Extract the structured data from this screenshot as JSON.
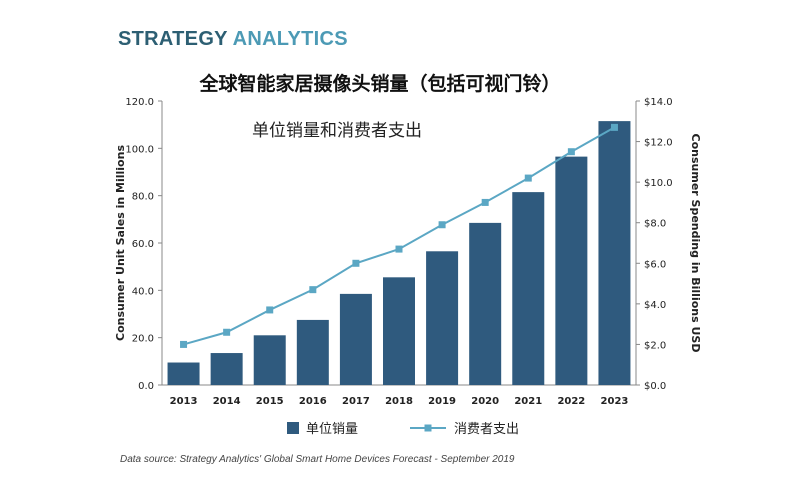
{
  "brand": {
    "part1": "STRATEGY",
    "part2": "ANALYTICS"
  },
  "source_note": "Data source: Strategy Analytics' Global Smart Home Devices Forecast - September 2019",
  "colors": {
    "bar": "#2f5a7e",
    "line": "#5ba7c4",
    "logo": "#2d5f73",
    "logo_accent": "#4c9ab5"
  },
  "chart_data": {
    "type": "bar",
    "title": "全球智能家居摄像头销量（包括可视门铃）",
    "subtitle": "单位销量和消费者支出",
    "categories": [
      "2013",
      "2014",
      "2015",
      "2016",
      "2017",
      "2018",
      "2019",
      "2020",
      "2021",
      "2022",
      "2023"
    ],
    "series": [
      {
        "name": "单位销量",
        "type": "bar",
        "axis": "left",
        "values": [
          9.5,
          13.5,
          21,
          27.5,
          38.5,
          45.5,
          56.5,
          68.5,
          81.5,
          96.5,
          111.5
        ]
      },
      {
        "name": "消费者支出",
        "type": "line",
        "axis": "right",
        "values": [
          2.0,
          2.6,
          3.7,
          4.7,
          6.0,
          6.7,
          7.9,
          9.0,
          10.2,
          11.5,
          12.7
        ]
      }
    ],
    "ylabel": "Consumer Unit Sales in Millions",
    "y2label": "Consumer Spending in Billions USD",
    "ylim": [
      0,
      120
    ],
    "y2lim": [
      0,
      14
    ],
    "yticks": [
      "0.0",
      "20.0",
      "40.0",
      "60.0",
      "80.0",
      "100.0",
      "120.0"
    ],
    "y2ticks": [
      "$0.0",
      "$2.0",
      "$4.0",
      "$6.0",
      "$8.0",
      "$10.0",
      "$12.0",
      "$14.0"
    ],
    "grid": false,
    "legend": "bottom"
  }
}
